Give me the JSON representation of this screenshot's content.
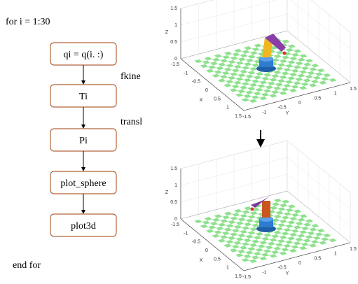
{
  "loop_start": "for i = 1:30",
  "loop_end": "end  for",
  "nodes": [
    {
      "label": "qi = q(i. :)"
    },
    {
      "label": "Ti"
    },
    {
      "label": "Pi"
    },
    {
      "label": "plot_sphere"
    },
    {
      "label": "plot3d"
    }
  ],
  "edge_labels": [
    "fkine",
    "transl"
  ],
  "plots": [
    {
      "z_label": "Z",
      "x_label": "X",
      "y_label": "Y",
      "z_ticks": [
        0,
        0.5,
        1,
        1.5
      ],
      "x_ticks": [
        -1.5,
        -1,
        -0.5,
        0,
        0.5,
        1,
        1.5
      ],
      "y_ticks": [
        -1.5,
        -1,
        -0.5,
        0,
        0.5,
        1,
        1.5
      ]
    },
    {
      "z_label": "Z",
      "x_label": "X",
      "y_label": "Y",
      "z_ticks": [
        0,
        0.5,
        1,
        1.5
      ],
      "x_ticks": [
        -1.5,
        -1,
        -0.5,
        0,
        0.5,
        1,
        1.5
      ],
      "y_ticks": [
        -1.5,
        -1,
        -0.5,
        0,
        0.5,
        1,
        1.5
      ]
    }
  ]
}
